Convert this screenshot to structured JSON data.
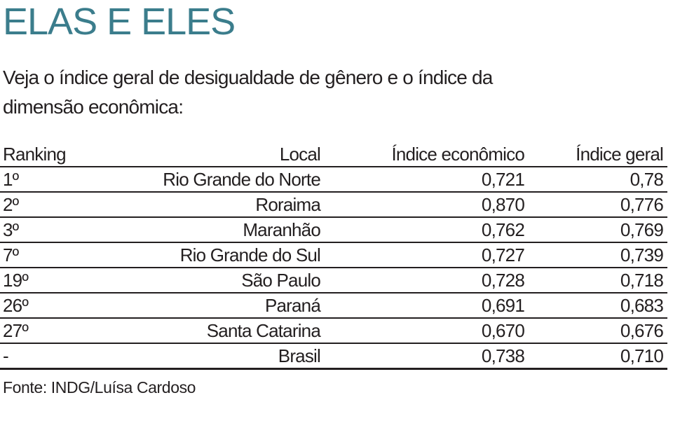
{
  "header": {
    "title": "ELAS E ELES",
    "subtitle": "Veja o índice geral de desigualdade de gênero e o índice da dimensão econômica:"
  },
  "table": {
    "columns": [
      "Ranking",
      "Local",
      "Índice econômico",
      "Índice geral"
    ],
    "rows": [
      [
        "1º",
        "Rio Grande do Norte",
        "0,721",
        "0,78"
      ],
      [
        "2º",
        "Roraima",
        "0,870",
        "0,776"
      ],
      [
        "3º",
        "Maranhão",
        "0,762",
        "0,769"
      ],
      [
        "7º",
        "Rio Grande do Sul",
        "0,727",
        "0,739"
      ],
      [
        "19º",
        "São Paulo",
        "0,728",
        "0,718"
      ],
      [
        "26º",
        "Paraná",
        "0,691",
        "0,683"
      ],
      [
        "27º",
        "Santa Catarina",
        "0,670",
        "0,676"
      ],
      [
        "-",
        "Brasil",
        "0,738",
        "0,710"
      ]
    ]
  },
  "footer": {
    "source": "Fonte: INDG/Luísa Cardoso"
  }
}
